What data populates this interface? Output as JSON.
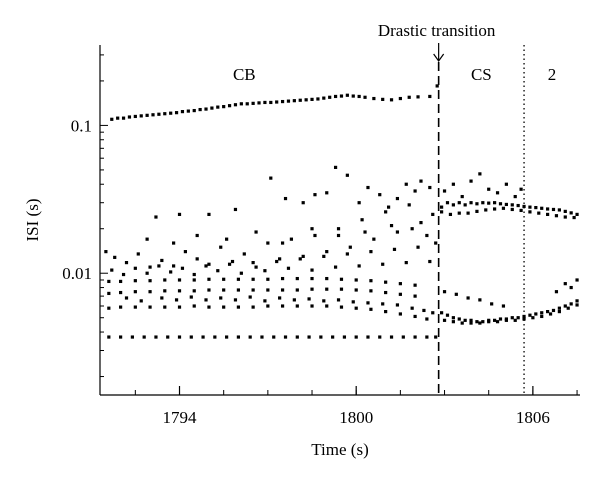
{
  "chart_data": {
    "type": "scatter",
    "title": "",
    "xlabel": "Time (s)",
    "ylabel": "ISI (s)",
    "xlim": [
      1791.3,
      1807.6
    ],
    "ylim": [
      0.0015,
      0.35
    ],
    "y_scale": "log",
    "grid": false,
    "legend": "none",
    "x_ticks": [
      1794,
      1800,
      1806
    ],
    "x_tick_labels": [
      "1794",
      "1800",
      "1806"
    ],
    "y_ticks": [
      0.01,
      0.1
    ],
    "y_tick_labels": [
      "0.01",
      "0.1"
    ],
    "marker_color": "#000000",
    "annotations": {
      "region_cb": "CB",
      "region_cs": "CS",
      "region_2": "2",
      "transition": "Drastic transition"
    },
    "transition_time": 1802.8,
    "region_boundary_time": 1805.7,
    "series": [
      {
        "x": [
          1791.7,
          1791.9,
          1792.1,
          1792.3,
          1792.5,
          1792.7,
          1792.9,
          1793.1,
          1793.3,
          1793.5,
          1793.7,
          1793.9,
          1794.1,
          1794.3,
          1794.5,
          1794.7,
          1794.9,
          1795.1,
          1795.3,
          1795.5,
          1795.7,
          1795.9,
          1796.1,
          1796.3,
          1796.5,
          1796.7,
          1796.9,
          1797.1,
          1797.3,
          1797.5,
          1797.7,
          1797.9,
          1798.1,
          1798.3,
          1798.5,
          1798.7,
          1798.9,
          1799.1,
          1799.3,
          1799.5,
          1799.7,
          1799.9,
          1800.1,
          1800.3,
          1800.6,
          1800.9,
          1801.2,
          1801.5,
          1801.8,
          1802.1,
          1802.5,
          1802.75
        ],
        "y": [
          0.11,
          0.112,
          0.112,
          0.114,
          0.115,
          0.116,
          0.117,
          0.118,
          0.119,
          0.12,
          0.121,
          0.122,
          0.124,
          0.125,
          0.126,
          0.128,
          0.129,
          0.131,
          0.133,
          0.134,
          0.136,
          0.138,
          0.14,
          0.14,
          0.141,
          0.142,
          0.143,
          0.143,
          0.144,
          0.145,
          0.146,
          0.147,
          0.148,
          0.149,
          0.15,
          0.151,
          0.153,
          0.155,
          0.157,
          0.158,
          0.16,
          0.158,
          0.157,
          0.155,
          0.152,
          0.15,
          0.149,
          0.152,
          0.155,
          0.156,
          0.157,
          0.185
        ]
      },
      {
        "x": [
          1791.6,
          1792.0,
          1792.4,
          1792.8,
          1793.2,
          1793.6,
          1794.0,
          1794.4,
          1794.8,
          1795.2,
          1795.6,
          1796.0,
          1796.4,
          1796.8,
          1797.2,
          1797.6,
          1798.0,
          1798.4,
          1798.8,
          1799.2,
          1799.6,
          1800.0,
          1800.4,
          1800.8,
          1801.2,
          1801.6,
          1802.0,
          1802.4,
          1802.7
        ],
        "y": [
          0.0037,
          0.0037,
          0.0037,
          0.0037,
          0.0037,
          0.0037,
          0.0037,
          0.0037,
          0.0037,
          0.0037,
          0.0037,
          0.0037,
          0.0037,
          0.0037,
          0.0037,
          0.0037,
          0.0037,
          0.0037,
          0.0037,
          0.0037,
          0.0037,
          0.0037,
          0.0037,
          0.0037,
          0.0037,
          0.0037,
          0.0037,
          0.0037,
          0.0037
        ]
      },
      {
        "x": [
          1791.6,
          1792.0,
          1792.5,
          1793.0,
          1793.5,
          1794.0,
          1794.5,
          1795.0,
          1795.5,
          1796.0,
          1796.5,
          1797.0,
          1797.5,
          1798.0,
          1798.5,
          1799.0,
          1799.5,
          1800.0,
          1800.5,
          1801.0,
          1801.5,
          1802.0,
          1802.4
        ],
        "y": [
          0.0058,
          0.0059,
          0.0059,
          0.0059,
          0.0059,
          0.0059,
          0.006,
          0.0059,
          0.0059,
          0.0059,
          0.0059,
          0.006,
          0.006,
          0.006,
          0.006,
          0.006,
          0.0059,
          0.0058,
          0.0057,
          0.0055,
          0.0053,
          0.0051,
          0.0049
        ]
      },
      {
        "x": [
          1791.6,
          1792.0,
          1792.5,
          1793.0,
          1793.5,
          1794.0,
          1794.5,
          1795.0,
          1795.5,
          1796.0,
          1796.5,
          1797.0,
          1797.5,
          1798.0,
          1798.5,
          1799.0,
          1799.5,
          1800.0,
          1800.5,
          1801.0,
          1801.5,
          1802.0
        ],
        "y": [
          0.0073,
          0.0074,
          0.0075,
          0.0075,
          0.0076,
          0.0076,
          0.0076,
          0.0077,
          0.0077,
          0.0077,
          0.0077,
          0.0077,
          0.0077,
          0.0077,
          0.0078,
          0.0078,
          0.0078,
          0.0077,
          0.0076,
          0.0074,
          0.0072,
          0.007
        ]
      },
      {
        "x": [
          1791.6,
          1792.0,
          1792.5,
          1793.0,
          1793.5,
          1794.0,
          1794.5,
          1795.0,
          1795.5,
          1796.0,
          1796.5,
          1797.0,
          1797.5,
          1798.0,
          1798.5,
          1799.0,
          1799.5,
          1800.0,
          1800.5,
          1801.0,
          1801.5,
          1802.0
        ],
        "y": [
          0.0088,
          0.0088,
          0.0089,
          0.0089,
          0.009,
          0.009,
          0.009,
          0.0091,
          0.0091,
          0.0091,
          0.0091,
          0.0091,
          0.0092,
          0.0092,
          0.0092,
          0.0092,
          0.0091,
          0.009,
          0.0089,
          0.0087,
          0.0085,
          0.0083
        ]
      },
      {
        "x": [
          1791.5,
          1791.8,
          1792.2,
          1792.6,
          1793.0,
          1793.4,
          1793.8,
          1794.2,
          1794.6,
          1795.0,
          1795.4,
          1795.8,
          1796.2,
          1796.6,
          1797.0,
          1797.4,
          1797.8,
          1798.2,
          1798.6,
          1799.0,
          1799.4,
          1799.8,
          1800.2,
          1800.6,
          1801.0,
          1801.4,
          1801.8,
          1802.2,
          1802.6
        ],
        "y": [
          0.014,
          0.0128,
          0.0118,
          0.0135,
          0.011,
          0.0122,
          0.0112,
          0.014,
          0.0125,
          0.0115,
          0.015,
          0.012,
          0.0135,
          0.011,
          0.016,
          0.0125,
          0.017,
          0.013,
          0.018,
          0.014,
          0.02,
          0.015,
          0.023,
          0.017,
          0.026,
          0.019,
          0.029,
          0.022,
          0.025
        ]
      },
      {
        "x": [
          1791.7,
          1792.1,
          1792.5,
          1792.9,
          1793.3,
          1793.7,
          1794.1,
          1794.5,
          1794.9,
          1795.3,
          1795.7,
          1796.1,
          1796.5,
          1796.9,
          1797.3,
          1797.7,
          1798.1,
          1798.5,
          1798.9,
          1799.3,
          1799.7,
          1800.1,
          1800.5,
          1800.9,
          1801.3,
          1801.7,
          1802.1,
          1802.5
        ],
        "y": [
          0.0105,
          0.0098,
          0.0108,
          0.01,
          0.0112,
          0.0102,
          0.0108,
          0.0098,
          0.0112,
          0.0104,
          0.0115,
          0.01,
          0.0118,
          0.0104,
          0.012,
          0.0108,
          0.0125,
          0.0105,
          0.013,
          0.011,
          0.0135,
          0.0112,
          0.014,
          0.0115,
          0.0145,
          0.0118,
          0.015,
          0.012
        ]
      },
      {
        "x": [
          1793.2,
          1794.0,
          1795.0,
          1795.9,
          1797.1,
          1797.6,
          1798.2,
          1798.6,
          1799.0,
          1799.3,
          1799.7,
          1800.1,
          1800.4,
          1800.8,
          1801.1,
          1801.4,
          1801.7,
          1802.0,
          1802.2,
          1802.5
        ],
        "y": [
          0.024,
          0.025,
          0.025,
          0.027,
          0.044,
          0.032,
          0.03,
          0.034,
          0.035,
          0.052,
          0.046,
          0.03,
          0.038,
          0.034,
          0.028,
          0.032,
          0.04,
          0.036,
          0.042,
          0.038
        ]
      },
      {
        "x": [
          1792.2,
          1792.7,
          1793.4,
          1793.9,
          1794.4,
          1794.9,
          1795.4,
          1795.9,
          1796.4,
          1796.9,
          1797.4,
          1797.9,
          1798.4,
          1798.9,
          1799.4,
          1799.9,
          1800.4,
          1800.9,
          1801.4,
          1801.9,
          1802.3,
          1802.6
        ],
        "y": [
          0.0068,
          0.0065,
          0.0068,
          0.0066,
          0.0069,
          0.0066,
          0.0068,
          0.0066,
          0.0069,
          0.0065,
          0.0068,
          0.0066,
          0.0067,
          0.0065,
          0.0066,
          0.0064,
          0.0063,
          0.0062,
          0.0061,
          0.0058,
          0.0056,
          0.0054
        ]
      },
      {
        "x": [
          1792.9,
          1793.8,
          1794.6,
          1795.6,
          1796.6,
          1797.5,
          1798.5,
          1799.4,
          1800.3,
          1801.2,
          1801.9,
          1802.4,
          1802.7
        ],
        "y": [
          0.017,
          0.016,
          0.018,
          0.017,
          0.019,
          0.016,
          0.02,
          0.018,
          0.019,
          0.021,
          0.02,
          0.018,
          0.016
        ]
      },
      {
        "x": [
          1802.9,
          1803.1,
          1803.3,
          1803.5,
          1803.7,
          1803.9,
          1804.1,
          1804.3,
          1804.5,
          1804.7,
          1804.9,
          1805.1,
          1805.3,
          1805.5,
          1805.7,
          1805.9,
          1806.1,
          1806.3,
          1806.5,
          1806.7,
          1806.9,
          1807.1,
          1807.3,
          1807.5
        ],
        "y": [
          0.028,
          0.03,
          0.029,
          0.03,
          0.029,
          0.03,
          0.0295,
          0.03,
          0.0298,
          0.03,
          0.0295,
          0.0292,
          0.029,
          0.0287,
          0.0283,
          0.028,
          0.0278,
          0.0275,
          0.0272,
          0.027,
          0.0268,
          0.0262,
          0.0256,
          0.025
        ]
      },
      {
        "x": [
          1802.9,
          1803.2,
          1803.5,
          1803.8,
          1804.1,
          1804.4,
          1804.7,
          1805.0,
          1805.3,
          1805.6,
          1805.9,
          1806.2,
          1806.5,
          1806.8,
          1807.1,
          1807.4
        ],
        "y": [
          0.026,
          0.025,
          0.0255,
          0.0255,
          0.0262,
          0.0268,
          0.0272,
          0.0275,
          0.027,
          0.0266,
          0.026,
          0.0255,
          0.025,
          0.0245,
          0.024,
          0.0238
        ]
      },
      {
        "x": [
          1803.0,
          1803.3,
          1803.6,
          1803.9,
          1804.2,
          1804.5,
          1804.8,
          1805.1,
          1805.4,
          1805.6
        ],
        "y": [
          0.036,
          0.04,
          0.033,
          0.042,
          0.047,
          0.037,
          0.035,
          0.04,
          0.033,
          0.037
        ]
      },
      {
        "x": [
          1802.9,
          1803.1,
          1803.3,
          1803.5,
          1803.7,
          1803.9,
          1804.1,
          1804.3,
          1804.5,
          1804.7,
          1804.9,
          1805.1,
          1805.3,
          1805.5,
          1805.7,
          1805.9,
          1806.1,
          1806.3,
          1806.5,
          1806.7,
          1806.9,
          1807.1,
          1807.3,
          1807.5
        ],
        "y": [
          0.0054,
          0.0052,
          0.005,
          0.0049,
          0.0048,
          0.0048,
          0.0047,
          0.0047,
          0.0048,
          0.0048,
          0.0049,
          0.0049,
          0.005,
          0.005,
          0.0051,
          0.0052,
          0.0053,
          0.0054,
          0.0055,
          0.0056,
          0.0058,
          0.006,
          0.0062,
          0.0065
        ]
      },
      {
        "x": [
          1803.0,
          1803.3,
          1803.6,
          1803.9,
          1804.2,
          1804.5,
          1804.8,
          1805.1,
          1805.4,
          1805.7,
          1806.0,
          1806.3,
          1806.6,
          1806.9,
          1807.2,
          1807.5
        ],
        "y": [
          0.0048,
          0.0047,
          0.0046,
          0.0046,
          0.0046,
          0.0047,
          0.0047,
          0.0048,
          0.0048,
          0.0049,
          0.005,
          0.0051,
          0.0053,
          0.0055,
          0.0058,
          0.0061
        ]
      },
      {
        "x": [
          1803.0,
          1803.4,
          1803.8,
          1804.2,
          1804.6,
          1805.0,
          1806.8,
          1807.1,
          1807.3,
          1807.5
        ],
        "y": [
          0.0075,
          0.0072,
          0.0068,
          0.0066,
          0.0062,
          0.006,
          0.0075,
          0.0085,
          0.008,
          0.009
        ]
      }
    ]
  }
}
